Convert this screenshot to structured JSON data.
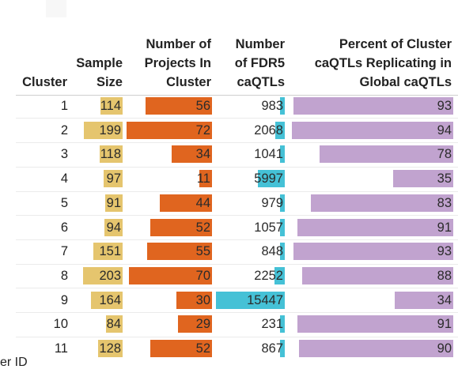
{
  "footer_label": "er ID",
  "colors": {
    "sample_size": "#e5c56e",
    "projects": "#e0651f",
    "caqtls": "#45c1d6",
    "percent": "#c1a3cf",
    "text": "#222222"
  },
  "chart_data": {
    "type": "table",
    "columns": [
      {
        "key": "cluster",
        "header": [
          "",
          "",
          "Cluster"
        ]
      },
      {
        "key": "sample_size",
        "header": [
          "",
          "Sample",
          "Size"
        ]
      },
      {
        "key": "projects",
        "header": [
          "Number of",
          "Projects In",
          "Cluster"
        ]
      },
      {
        "key": "fdr5_caqtls",
        "header": [
          "Number",
          "of FDR5",
          "caQTLs"
        ]
      },
      {
        "key": "percent_replicating",
        "header": [
          "Percent of Cluster",
          "caQTLs Replicating in",
          "Global caQTLs"
        ]
      }
    ],
    "rows": [
      {
        "cluster": "1",
        "sample_size": 114,
        "projects": 56,
        "fdr5_caqtls": 983,
        "percent_replicating": 93
      },
      {
        "cluster": "2",
        "sample_size": 199,
        "projects": 72,
        "fdr5_caqtls": 2068,
        "percent_replicating": 94
      },
      {
        "cluster": "3",
        "sample_size": 118,
        "projects": 34,
        "fdr5_caqtls": 1041,
        "percent_replicating": 78
      },
      {
        "cluster": "4",
        "sample_size": 97,
        "projects": 11,
        "fdr5_caqtls": 5997,
        "percent_replicating": 35
      },
      {
        "cluster": "5",
        "sample_size": 91,
        "projects": 44,
        "fdr5_caqtls": 979,
        "percent_replicating": 83
      },
      {
        "cluster": "6",
        "sample_size": 94,
        "projects": 52,
        "fdr5_caqtls": 1057,
        "percent_replicating": 91
      },
      {
        "cluster": "7",
        "sample_size": 151,
        "projects": 55,
        "fdr5_caqtls": 848,
        "percent_replicating": 93
      },
      {
        "cluster": "8",
        "sample_size": 203,
        "projects": 70,
        "fdr5_caqtls": 2252,
        "percent_replicating": 88
      },
      {
        "cluster": "9",
        "sample_size": 164,
        "projects": 30,
        "fdr5_caqtls": 15447,
        "percent_replicating": 34
      },
      {
        "cluster": "10",
        "sample_size": 84,
        "projects": 29,
        "fdr5_caqtls": 231,
        "percent_replicating": 91
      },
      {
        "cluster": "11",
        "sample_size": 128,
        "projects": 52,
        "fdr5_caqtls": 867,
        "percent_replicating": 90
      }
    ]
  }
}
